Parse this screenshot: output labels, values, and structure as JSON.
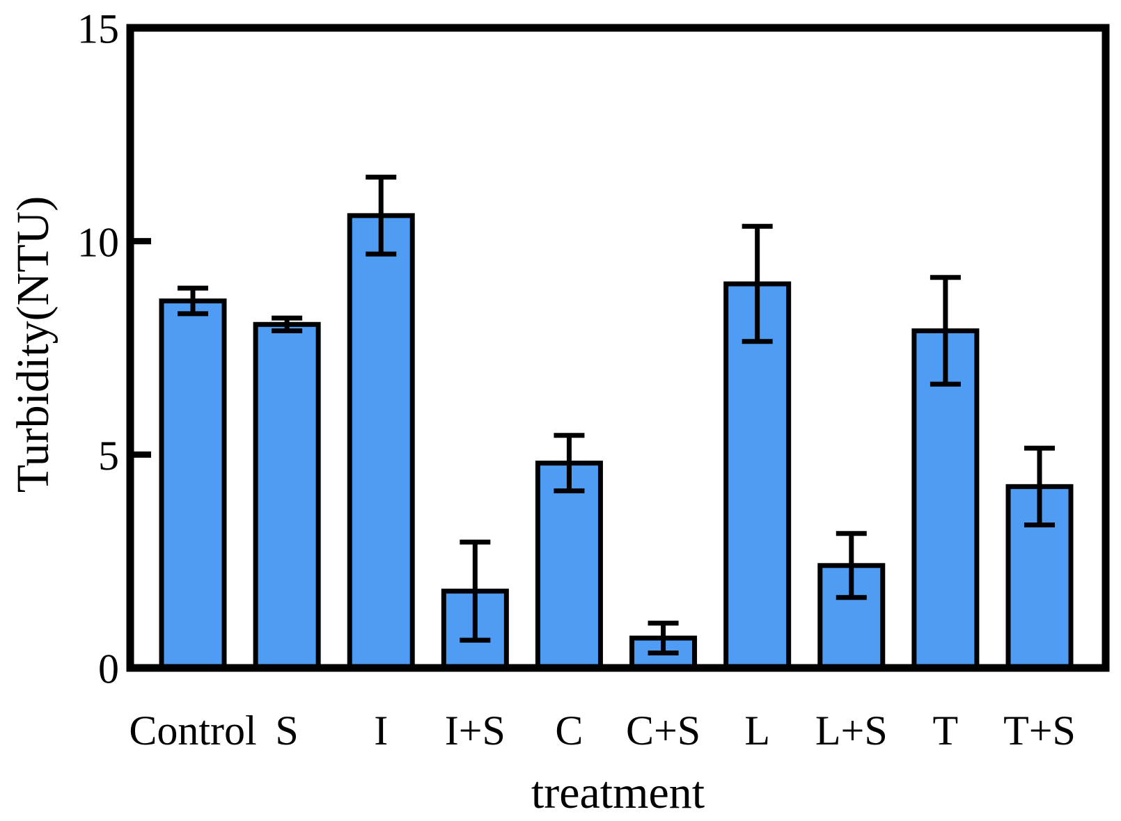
{
  "chart_data": {
    "type": "bar",
    "title": "",
    "xlabel": "treatment",
    "ylabel": "Turbidity(NTU)",
    "categories": [
      "Control",
      "S",
      "I",
      "I+S",
      "C",
      "C+S",
      "L",
      "L+S",
      "T",
      "T+S"
    ],
    "values": [
      8.6,
      8.05,
      10.6,
      1.8,
      4.8,
      0.7,
      9.0,
      2.4,
      7.9,
      4.25
    ],
    "errors": [
      0.3,
      0.15,
      0.9,
      1.15,
      0.65,
      0.35,
      1.35,
      0.75,
      1.25,
      0.9
    ],
    "ylim": [
      0,
      15
    ],
    "yticks": [
      0,
      5,
      10,
      15
    ],
    "bar_color": "#4f9cf5",
    "bar_outline_color": "#000000",
    "error_bar_color": "#000000",
    "frame_color": "#000000",
    "background_color": "#ffffff",
    "grid": false,
    "legend": "none"
  }
}
